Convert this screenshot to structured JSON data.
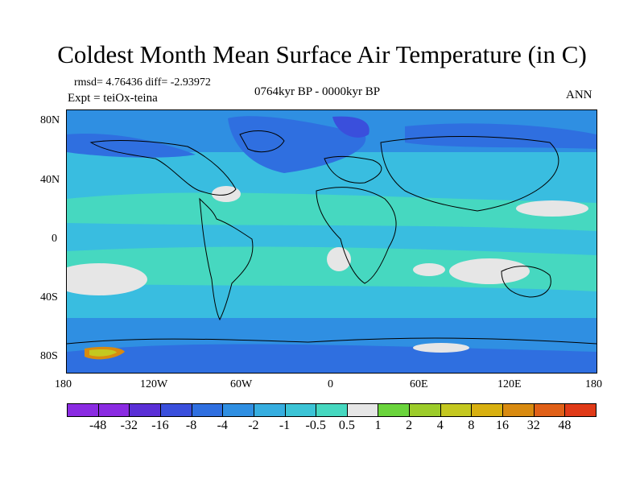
{
  "title": "Coldest Month Mean Surface Air Temperature (in C)",
  "stats_line": "rmsd= 4.76436  diff= -2.93972",
  "experiment": "Expt = teiOx-teina",
  "period": "0764kyr BP - 0000kyr BP",
  "season": "ANN",
  "lat_labels": [
    "80N",
    "40N",
    "0",
    "40S",
    "80S"
  ],
  "lon_labels": [
    "180",
    "120W",
    "60W",
    "0",
    "60E",
    "120E",
    "180"
  ],
  "colorbar": {
    "labels": [
      "-48",
      "-32",
      "-16",
      "-8",
      "-4",
      "-2",
      "-1",
      "-0.5",
      "0.5",
      "1",
      "2",
      "4",
      "8",
      "16",
      "32",
      "48"
    ],
    "colors": [
      "#8a2be2",
      "#5a2fd6",
      "#3a4fdc",
      "#2f6fe0",
      "#2f8fe2",
      "#36aee0",
      "#3cc4d6",
      "#46d8c0",
      "#e6e6e6",
      "#6ad43c",
      "#9ccc2a",
      "#c4c820",
      "#d8b010",
      "#d88a10",
      "#e06018",
      "#e03a18"
    ]
  },
  "map_colors": {
    "base": "#39bde0",
    "cool": "#2f8fe2",
    "cooler": "#2f6fe0",
    "coldest": "#3a4fdc",
    "mild": "#46d8c0",
    "neutral": "#e6e6e6",
    "warm": "#c4c820",
    "hot": "#d88a10"
  }
}
